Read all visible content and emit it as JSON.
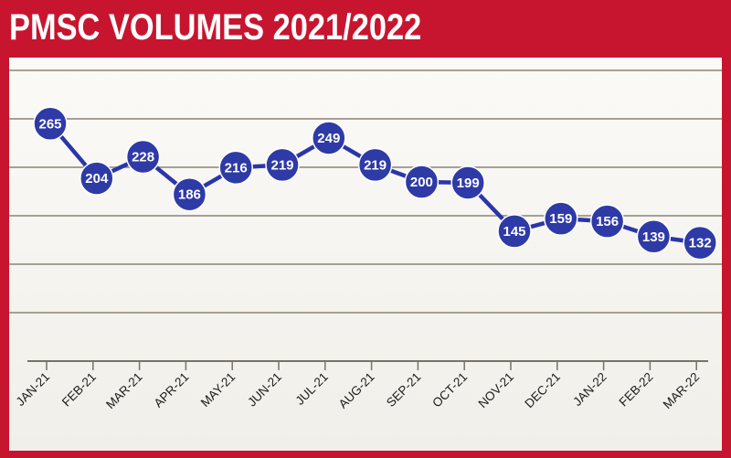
{
  "title": "PMSC VOLUMES 2021/2022",
  "colors": {
    "frame": "#c8152f",
    "line": "#2a36a8",
    "marker": "#2e3aa6",
    "gridline": "#8c8375"
  },
  "chart_data": {
    "type": "line",
    "title": "PMSC VOLUMES 2021/2022",
    "xlabel": "",
    "ylabel": "",
    "categories": [
      "JAN-21",
      "FEB-21",
      "MAR-21",
      "APR-21",
      "MAY-21",
      "JUN-21",
      "JUL-21",
      "AUG-21",
      "SEP-21",
      "OCT-21",
      "NOV-21",
      "DEC-21",
      "JAN-22",
      "FEB-22",
      "MAR-22"
    ],
    "values": [
      265,
      204,
      228,
      186,
      216,
      219,
      249,
      219,
      200,
      199,
      145,
      159,
      156,
      139,
      132
    ],
    "ylim": [
      0,
      300
    ],
    "grid": true,
    "data_labels": true,
    "legend": "none"
  }
}
